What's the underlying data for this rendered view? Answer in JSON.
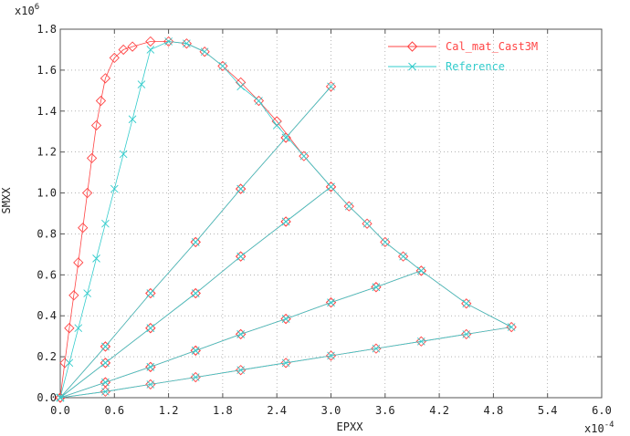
{
  "chart_data": {
    "type": "line",
    "title": "",
    "xlabel": "EPXX",
    "ylabel": "SMXX",
    "x_multiplier": "x10",
    "x_exponent": "-4",
    "y_multiplier": "x10",
    "y_exponent": "6",
    "xlim": [
      0.0,
      6.0
    ],
    "ylim": [
      0.0,
      1.8
    ],
    "x_ticks": [
      "0.0",
      "0.6",
      "1.2",
      "1.8",
      "2.4",
      "3.0",
      "3.6",
      "4.2",
      "4.8",
      "5.4",
      "6.0"
    ],
    "y_ticks": [
      "0.0",
      "0.2",
      "0.4",
      "0.6",
      "0.8",
      "1.0",
      "1.2",
      "1.4",
      "1.6",
      "1.8"
    ],
    "legend_position": "top-right",
    "series": [
      {
        "name": "Cal_mat_Cast3M",
        "color": "#ff4444",
        "marker": "diamond",
        "points": [
          [
            0.0,
            0.0
          ],
          [
            0.05,
            0.17
          ],
          [
            0.1,
            0.34
          ],
          [
            0.15,
            0.5
          ],
          [
            0.2,
            0.66
          ],
          [
            0.25,
            0.83
          ],
          [
            0.3,
            1.0
          ],
          [
            0.35,
            1.17
          ],
          [
            0.4,
            1.33
          ],
          [
            0.45,
            1.45
          ],
          [
            0.5,
            1.56
          ],
          [
            0.6,
            1.66
          ],
          [
            0.7,
            1.7
          ],
          [
            0.8,
            1.715
          ],
          [
            1.0,
            1.74
          ],
          [
            1.2,
            1.74
          ],
          [
            1.4,
            1.73
          ],
          [
            1.6,
            1.69
          ],
          [
            1.8,
            1.62
          ],
          [
            2.0,
            1.54
          ],
          [
            2.2,
            1.45
          ],
          [
            2.4,
            1.35
          ],
          [
            2.7,
            1.18
          ],
          [
            3.0,
            1.03
          ],
          [
            3.2,
            0.935
          ],
          [
            3.4,
            0.85
          ],
          [
            3.6,
            0.76
          ],
          [
            3.8,
            0.69
          ],
          [
            4.0,
            0.62
          ],
          [
            4.5,
            0.46
          ],
          [
            5.0,
            0.345
          ],
          [
            4.5,
            0.31
          ],
          [
            4.0,
            0.275
          ],
          [
            3.5,
            0.24
          ],
          [
            3.0,
            0.205
          ],
          [
            2.5,
            0.17
          ],
          [
            2.0,
            0.135
          ],
          [
            1.5,
            0.1
          ],
          [
            1.0,
            0.065
          ],
          [
            0.5,
            0.03
          ],
          [
            0.0,
            0.0
          ],
          [
            0.5,
            0.075
          ],
          [
            1.0,
            0.15
          ],
          [
            1.5,
            0.23
          ],
          [
            2.0,
            0.31
          ],
          [
            2.5,
            0.385
          ],
          [
            3.0,
            0.465
          ],
          [
            3.5,
            0.54
          ],
          [
            4.0,
            0.62
          ],
          [
            3.5,
            0.54
          ],
          [
            3.0,
            0.465
          ],
          [
            2.5,
            0.385
          ],
          [
            2.0,
            0.31
          ],
          [
            1.5,
            0.23
          ],
          [
            1.0,
            0.15
          ],
          [
            0.5,
            0.075
          ],
          [
            0.0,
            0.0
          ],
          [
            0.5,
            0.17
          ],
          [
            1.0,
            0.34
          ],
          [
            1.5,
            0.51
          ],
          [
            2.0,
            0.69
          ],
          [
            2.5,
            0.86
          ],
          [
            3.0,
            1.03
          ],
          [
            2.5,
            0.86
          ],
          [
            2.0,
            0.69
          ],
          [
            1.5,
            0.51
          ],
          [
            1.0,
            0.34
          ],
          [
            0.5,
            0.17
          ],
          [
            0.0,
            0.0
          ],
          [
            0.5,
            0.25
          ],
          [
            1.0,
            0.51
          ],
          [
            1.5,
            0.76
          ],
          [
            2.0,
            1.02
          ],
          [
            2.5,
            1.27
          ],
          [
            3.0,
            1.52
          ],
          [
            2.5,
            1.27
          ],
          [
            2.0,
            1.02
          ],
          [
            1.5,
            0.76
          ],
          [
            1.0,
            0.51
          ],
          [
            0.5,
            0.25
          ],
          [
            0.0,
            0.0
          ]
        ]
      },
      {
        "name": "Reference",
        "color": "#33cccc",
        "marker": "cross",
        "points": [
          [
            0.0,
            0.0
          ],
          [
            0.1,
            0.17
          ],
          [
            0.2,
            0.34
          ],
          [
            0.3,
            0.51
          ],
          [
            0.4,
            0.68
          ],
          [
            0.5,
            0.85
          ],
          [
            0.6,
            1.02
          ],
          [
            0.7,
            1.19
          ],
          [
            0.8,
            1.36
          ],
          [
            0.9,
            1.53
          ],
          [
            1.0,
            1.7
          ],
          [
            1.2,
            1.74
          ],
          [
            1.4,
            1.73
          ],
          [
            1.6,
            1.69
          ],
          [
            1.8,
            1.62
          ],
          [
            2.0,
            1.52
          ],
          [
            2.2,
            1.45
          ],
          [
            2.4,
            1.33
          ],
          [
            2.7,
            1.18
          ],
          [
            3.0,
            1.03
          ],
          [
            3.2,
            0.935
          ],
          [
            3.4,
            0.85
          ],
          [
            3.6,
            0.76
          ],
          [
            3.8,
            0.69
          ],
          [
            4.0,
            0.62
          ],
          [
            4.5,
            0.46
          ],
          [
            5.0,
            0.345
          ],
          [
            4.5,
            0.31
          ],
          [
            4.0,
            0.275
          ],
          [
            3.5,
            0.24
          ],
          [
            3.0,
            0.205
          ],
          [
            2.5,
            0.17
          ],
          [
            2.0,
            0.135
          ],
          [
            1.5,
            0.1
          ],
          [
            1.0,
            0.065
          ],
          [
            0.5,
            0.03
          ],
          [
            0.0,
            0.0
          ],
          [
            0.5,
            0.075
          ],
          [
            1.0,
            0.15
          ],
          [
            1.5,
            0.23
          ],
          [
            2.0,
            0.31
          ],
          [
            2.5,
            0.385
          ],
          [
            3.0,
            0.465
          ],
          [
            3.5,
            0.54
          ],
          [
            4.0,
            0.62
          ],
          [
            3.5,
            0.54
          ],
          [
            3.0,
            0.465
          ],
          [
            2.5,
            0.385
          ],
          [
            2.0,
            0.31
          ],
          [
            1.5,
            0.23
          ],
          [
            1.0,
            0.15
          ],
          [
            0.5,
            0.075
          ],
          [
            0.0,
            0.0
          ],
          [
            0.5,
            0.17
          ],
          [
            1.0,
            0.34
          ],
          [
            1.5,
            0.51
          ],
          [
            2.0,
            0.69
          ],
          [
            2.5,
            0.86
          ],
          [
            3.0,
            1.03
          ],
          [
            2.5,
            0.86
          ],
          [
            2.0,
            0.69
          ],
          [
            1.5,
            0.51
          ],
          [
            1.0,
            0.34
          ],
          [
            0.5,
            0.17
          ],
          [
            0.0,
            0.0
          ],
          [
            0.5,
            0.25
          ],
          [
            1.0,
            0.51
          ],
          [
            1.5,
            0.76
          ],
          [
            2.0,
            1.02
          ],
          [
            2.5,
            1.27
          ],
          [
            3.0,
            1.52
          ],
          [
            2.5,
            1.27
          ],
          [
            2.0,
            1.02
          ],
          [
            1.5,
            0.76
          ],
          [
            1.0,
            0.51
          ],
          [
            0.5,
            0.25
          ],
          [
            0.0,
            0.0
          ]
        ]
      }
    ]
  }
}
